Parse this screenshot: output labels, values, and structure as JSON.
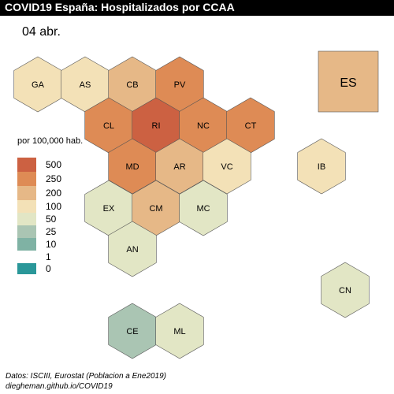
{
  "header": {
    "title": "COVID19 España: Hospitalizados por CCAA"
  },
  "date": "04 abr.",
  "legend": {
    "title": "por 100,000 hab.",
    "items": [
      {
        "label": "500",
        "color": "#cc6142"
      },
      {
        "label": "250",
        "color": "#de8b55"
      },
      {
        "label": "200",
        "color": "#e6b887"
      },
      {
        "label": "100",
        "color": "#f3e1b7"
      },
      {
        "label": "50",
        "color": "#e2e6c5"
      },
      {
        "label": "25",
        "color": "#aac5b3"
      },
      {
        "label": "10",
        "color": "#7fb2a4"
      },
      {
        "label": "1",
        "color": "#ffffff"
      },
      {
        "label": "0",
        "color": "#2a9799"
      }
    ]
  },
  "regions": [
    {
      "code": "GA",
      "color": "#f3e1b7"
    },
    {
      "code": "AS",
      "color": "#f3e1b7"
    },
    {
      "code": "CB",
      "color": "#e6b887"
    },
    {
      "code": "PV",
      "color": "#de8b55"
    },
    {
      "code": "CL",
      "color": "#de8b55"
    },
    {
      "code": "RI",
      "color": "#cc6142"
    },
    {
      "code": "NC",
      "color": "#de8b55"
    },
    {
      "code": "CT",
      "color": "#de8b55"
    },
    {
      "code": "MD",
      "color": "#de8b55"
    },
    {
      "code": "AR",
      "color": "#e6b887"
    },
    {
      "code": "VC",
      "color": "#f3e1b7"
    },
    {
      "code": "IB",
      "color": "#f3e1b7"
    },
    {
      "code": "EX",
      "color": "#e2e6c5"
    },
    {
      "code": "CM",
      "color": "#e6b887"
    },
    {
      "code": "MC",
      "color": "#e2e6c5"
    },
    {
      "code": "AN",
      "color": "#e2e6c5"
    },
    {
      "code": "CN",
      "color": "#e2e6c5"
    },
    {
      "code": "CE",
      "color": "#aac5b3"
    },
    {
      "code": "ML",
      "color": "#e2e6c5"
    }
  ],
  "summary": {
    "code": "ES",
    "color": "#e6b887"
  },
  "footer": {
    "line1": "Datos: ISCIII, Eurostat (Poblacion a Ene2019)",
    "line2": "diegheman.github.io/COVID19"
  }
}
